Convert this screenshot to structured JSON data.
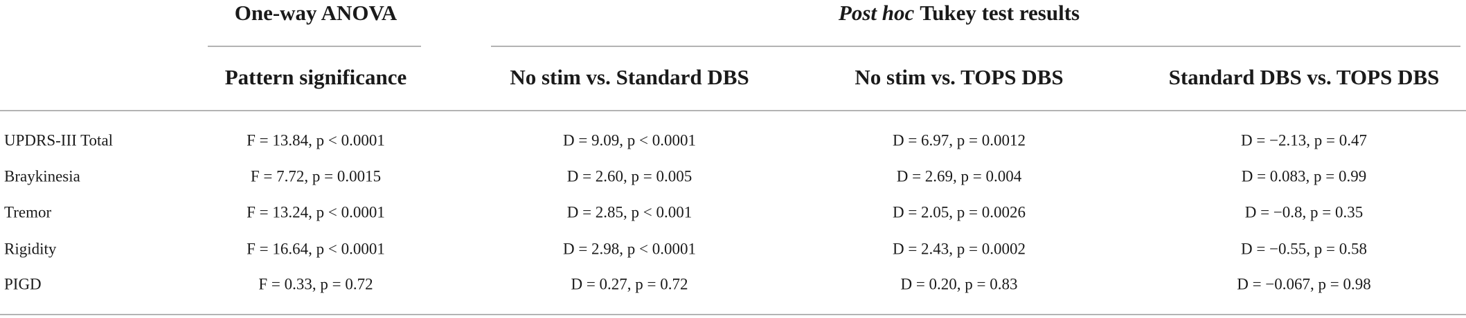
{
  "table": {
    "group_headers": [
      "One-way ANOVA",
      {
        "italic": "Post hoc",
        "text": "Tukey test results"
      }
    ],
    "columns": [
      "Pattern significance",
      "No stim vs. Standard DBS",
      "No stim vs. TOPS DBS",
      "Standard DBS vs. TOPS DBS"
    ],
    "rows": [
      [
        "UPDRS-III Total",
        "F = 13.84, p < 0.0001",
        "D = 9.09, p < 0.0001",
        "D = 6.97, p = 0.0012",
        "D = −2.13, p = 0.47"
      ],
      [
        "Braykinesia",
        "F = 7.72, p = 0.0015",
        "D = 2.60, p = 0.005",
        "D = 2.69, p = 0.004",
        "D = 0.083, p = 0.99"
      ],
      [
        "Tremor",
        "F = 13.24, p < 0.0001",
        "D = 2.85, p < 0.001",
        "D = 2.05, p = 0.0026",
        "D = −0.8, p = 0.35"
      ],
      [
        "Rigidity",
        "F = 16.64, p < 0.0001",
        "D = 2.98, p < 0.0001",
        "D = 2.43, p = 0.0002",
        "D = −0.55, p = 0.58"
      ],
      [
        "PIGD",
        "F = 0.33, p = 0.72",
        "D = 0.27, p = 0.72",
        "D = 0.20, p = 0.83",
        "D = −0.067, p = 0.98"
      ]
    ]
  }
}
